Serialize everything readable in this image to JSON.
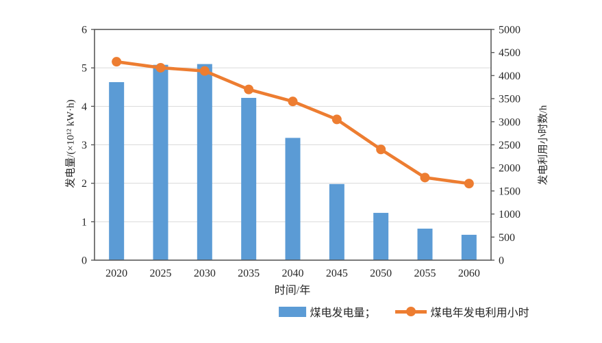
{
  "legend": {
    "bar_label": "煤电发电量；",
    "line_label": "煤电年发电利用小时"
  },
  "chart_data": {
    "type": "bar",
    "categories": [
      "2020",
      "2025",
      "2030",
      "2035",
      "2040",
      "2045",
      "2050",
      "2055",
      "2060"
    ],
    "series": [
      {
        "name": "煤电发电量",
        "type": "bar",
        "axis": "left",
        "color": "#5B9BD5",
        "values": [
          4.63,
          5.08,
          5.1,
          4.22,
          3.18,
          1.98,
          1.23,
          0.82,
          0.66
        ]
      },
      {
        "name": "煤电年发电利用小时",
        "type": "line",
        "axis": "right",
        "color": "#ED7D31",
        "values": [
          4300,
          4170,
          4100,
          3700,
          3440,
          3050,
          2400,
          1790,
          1660
        ]
      }
    ],
    "title": "",
    "xlabel": "时间/年",
    "ylabel_left": "发电量/(×10¹² kW·h)",
    "ylabel_right": "发电利用小时数/h",
    "ylim_left": [
      0,
      6
    ],
    "ylim_right": [
      0,
      5000
    ],
    "yticks_left": [
      0,
      1,
      2,
      3,
      4,
      5,
      6
    ],
    "yticks_right": [
      0,
      500,
      1000,
      1500,
      2000,
      2500,
      3000,
      3500,
      4000,
      4500,
      5000
    ],
    "grid": "horizontal-at-left-integers-1-to-5",
    "legend_position": "bottom-center",
    "colors": {
      "axis": "#595959",
      "gridline": "#D9D9D9",
      "tick_text": "#262626"
    }
  }
}
